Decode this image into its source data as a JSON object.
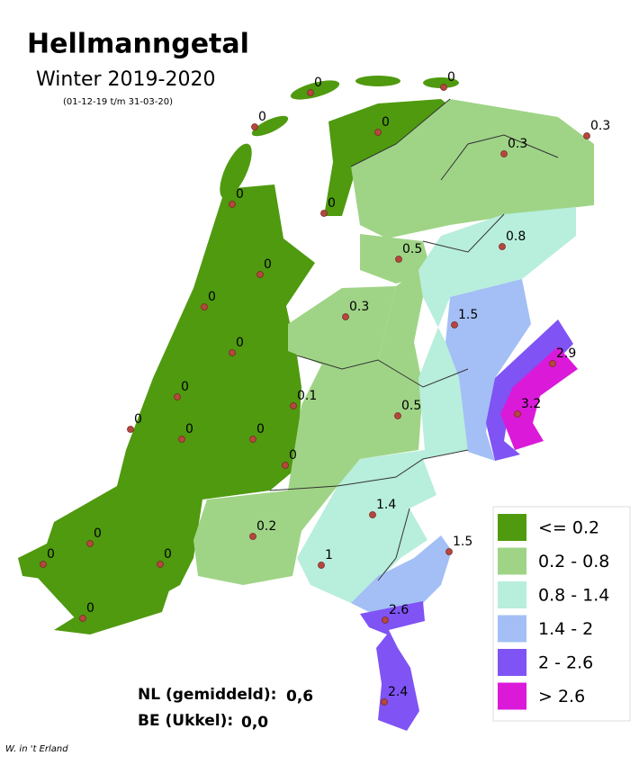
{
  "header": {
    "title": "Hellmanngetal",
    "subtitle": "Winter 2019-2020",
    "period": "(01-12-19 t/m 31-03-20)"
  },
  "stations": [
    0,
    0,
    0,
    0,
    0.3,
    0.3,
    0,
    0,
    0.5,
    0.8,
    0,
    0,
    0.3,
    1.5,
    0,
    2.9,
    0,
    0.1,
    0.5,
    3.2,
    0,
    0,
    0,
    0,
    1.4,
    1.5,
    0.2,
    0,
    0,
    0,
    1,
    0,
    2.6,
    2.4
  ],
  "legend": [
    {
      "label": "<= 0.2",
      "color": "#4f9a0f"
    },
    {
      "label": "0.2 - 0.8",
      "color": "#9fd486"
    },
    {
      "label": "0.8 - 1.4",
      "color": "#b8eedc"
    },
    {
      "label": "1.4 - 2",
      "color": "#a3bff5"
    },
    {
      "label": "2 - 2.6",
      "color": "#7f53f4"
    },
    {
      "label": "> 2.6",
      "color": "#da1ad8"
    }
  ],
  "summary": [
    {
      "label": "NL (gemiddeld):",
      "value": "0,6"
    },
    {
      "label": "BE (Ukkel):",
      "value": "0,0"
    }
  ],
  "credit": "W. in 't Erland"
}
